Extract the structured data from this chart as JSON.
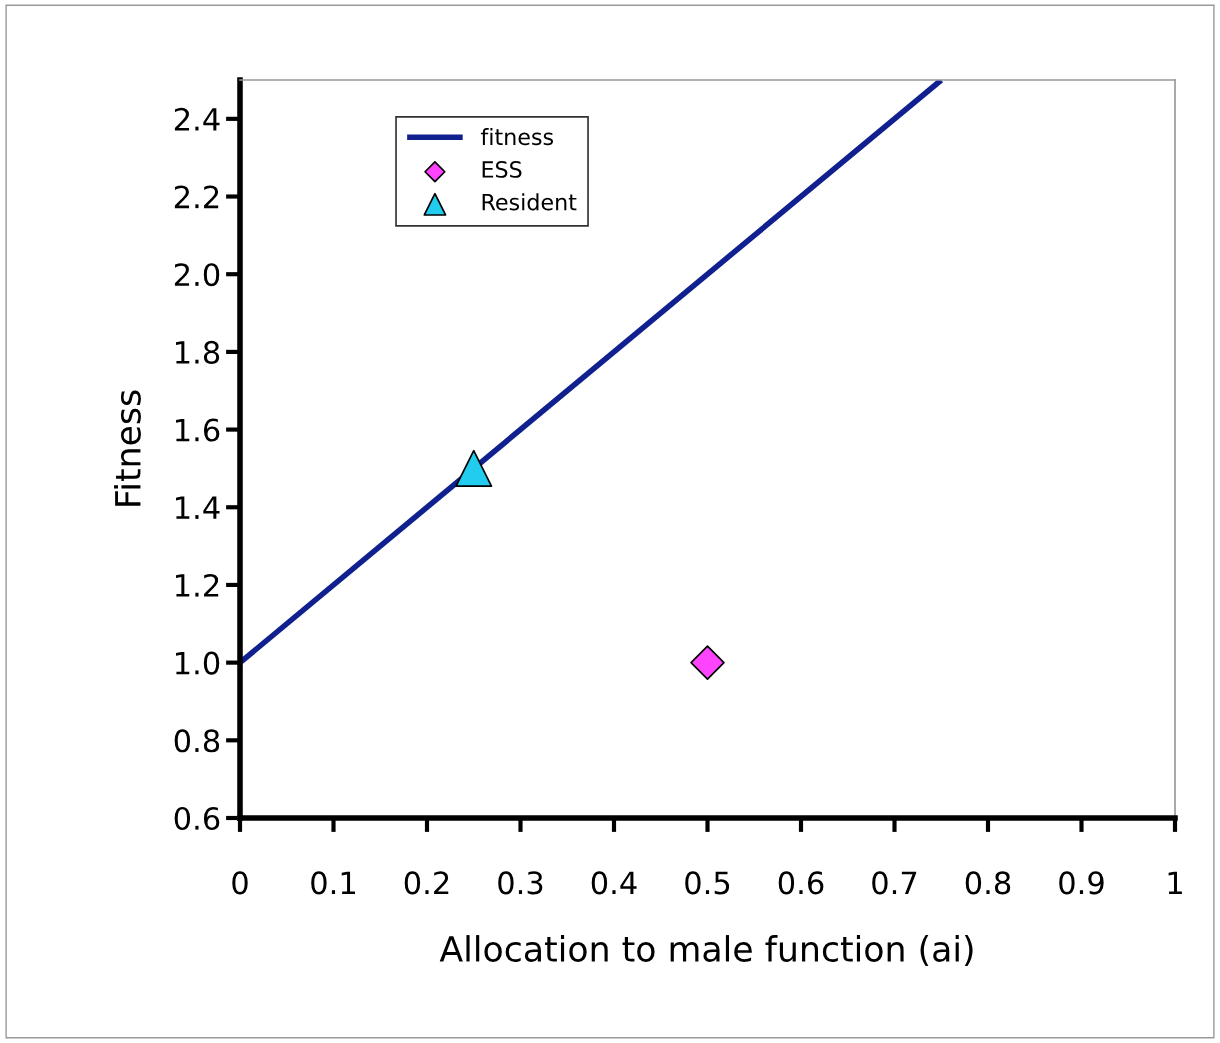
{
  "chart_data": {
    "type": "line",
    "xlabel": "Allocation to male function (ai)",
    "ylabel": "Fitness",
    "xlim": [
      0,
      1
    ],
    "ylim": [
      0.6,
      2.5
    ],
    "xticks": [
      0,
      0.1,
      0.2,
      0.3,
      0.4,
      0.5,
      0.6,
      0.7,
      0.8,
      0.9,
      1
    ],
    "yticks": [
      {
        "value": 0.6,
        "label": "0.6"
      },
      {
        "value": 0.8,
        "label": "0.8"
      },
      {
        "value": 1.0,
        "label": "1.0"
      },
      {
        "value": 1.2,
        "label": "1.2"
      },
      {
        "value": 1.4,
        "label": "1.4"
      },
      {
        "value": 1.6,
        "label": "1.6"
      },
      {
        "value": 1.8,
        "label": "1.8"
      },
      {
        "value": 2.0,
        "label": "2.0"
      },
      {
        "value": 2.2,
        "label": "2.2"
      },
      {
        "value": 2.4,
        "label": "2.4"
      }
    ],
    "grid": false,
    "legend": "top left",
    "series": [
      {
        "name": "fitness",
        "color": "#10208f",
        "x": [
          0,
          0.75
        ],
        "values": [
          1.0,
          2.5
        ],
        "marker": "none",
        "line_style": "solid"
      },
      {
        "name": "ESS",
        "type": "scatter",
        "color": "#ff44ff",
        "x": [
          0.5
        ],
        "values": [
          1.0
        ],
        "marker": "diamond"
      },
      {
        "name": "Resident",
        "type": "scatter",
        "color": "#22ccee",
        "x": [
          0.25
        ],
        "values": [
          1.5
        ],
        "marker": "triangle"
      }
    ]
  }
}
